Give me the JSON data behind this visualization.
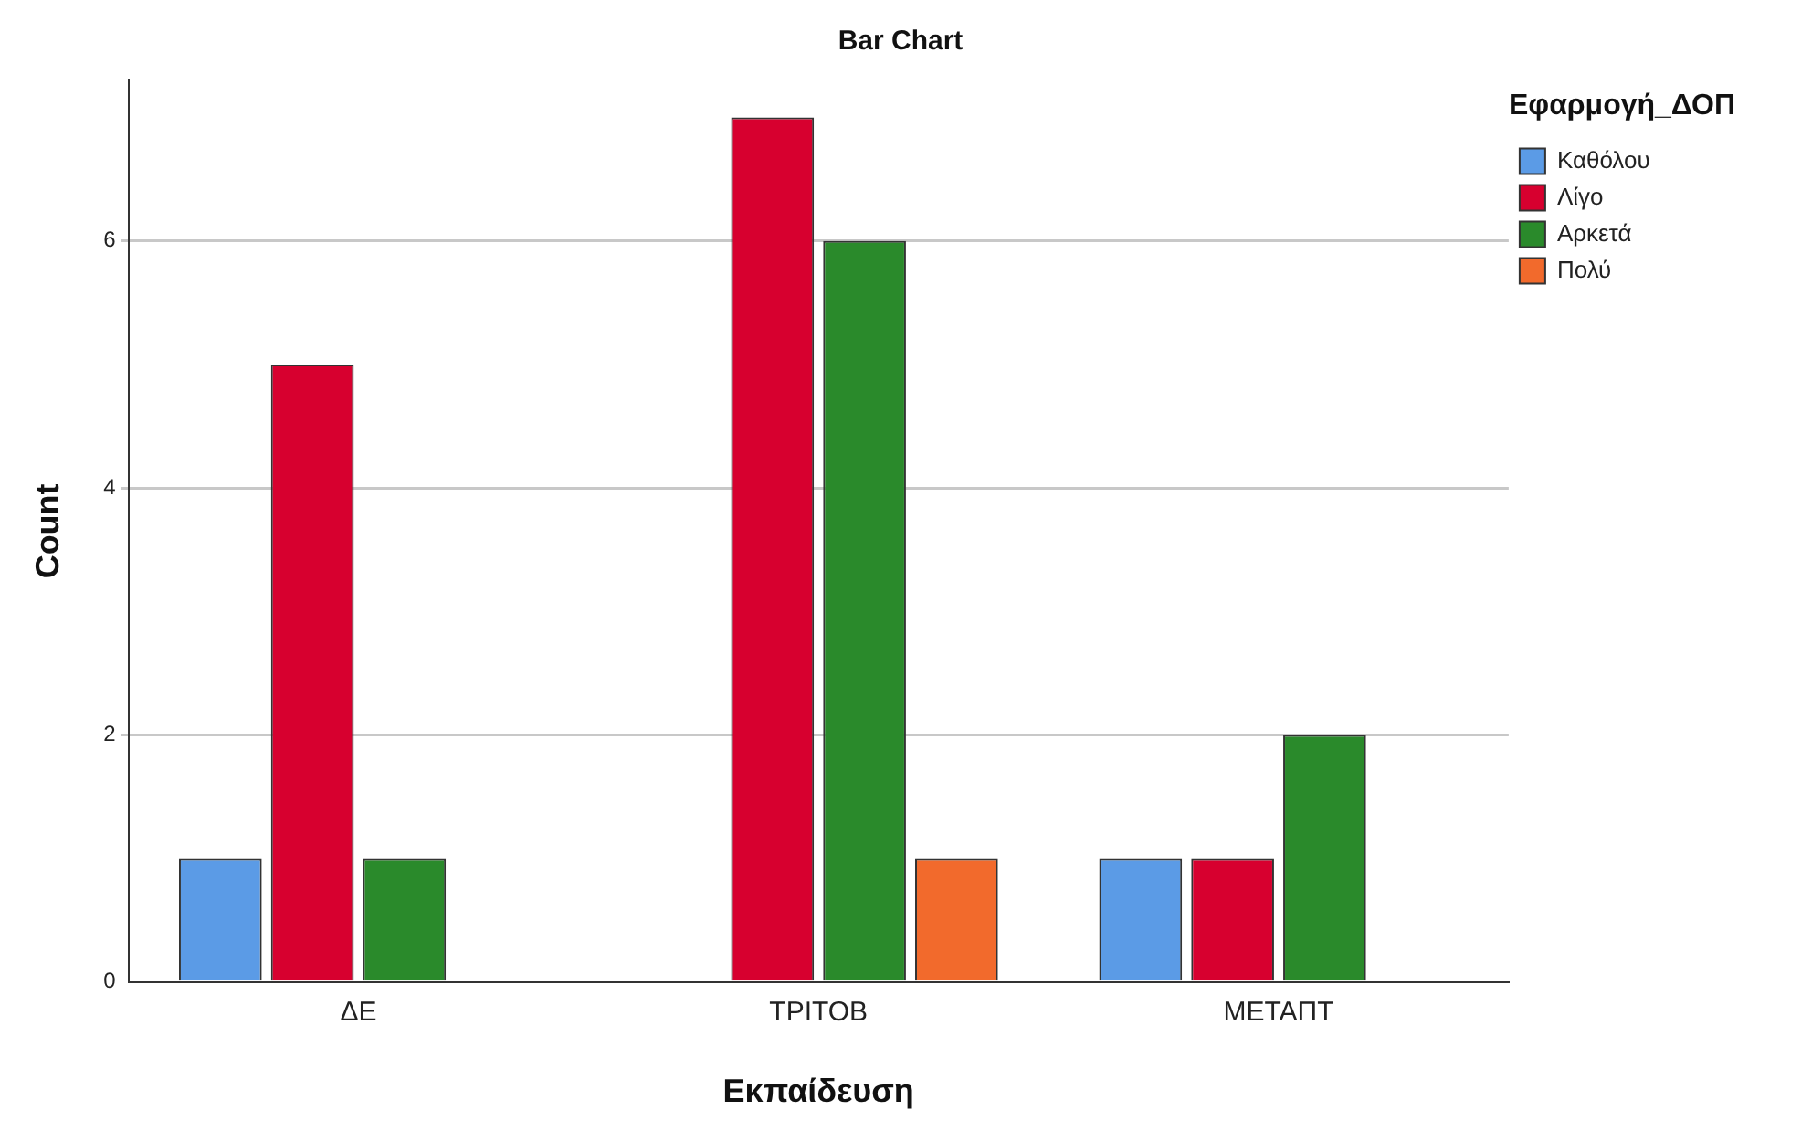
{
  "chart_data": {
    "type": "bar",
    "title": "Bar Chart",
    "xlabel": "Εκπαίδευση",
    "ylabel": "Count",
    "legend_title": "Εφαρμογή_ΔΟΠ",
    "categories": [
      "ΔΕ",
      "ΤΡΙΤΟΒ",
      "ΜΕΤΑΠΤ"
    ],
    "series": [
      {
        "name": "Καθόλου",
        "color": "#5b9be6",
        "values": [
          1,
          null,
          1
        ]
      },
      {
        "name": "Λίγο",
        "color": "#d7002f",
        "values": [
          5,
          7,
          1
        ]
      },
      {
        "name": "Αρκετά",
        "color": "#2a8a2b",
        "values": [
          1,
          6,
          2
        ]
      },
      {
        "name": "Πολύ",
        "color": "#f26a2c",
        "values": [
          null,
          1,
          null
        ]
      }
    ],
    "ylim": [
      0,
      7.3
    ],
    "yticks": [
      0,
      2,
      4,
      6
    ],
    "grid": "y",
    "legend": "top right"
  }
}
